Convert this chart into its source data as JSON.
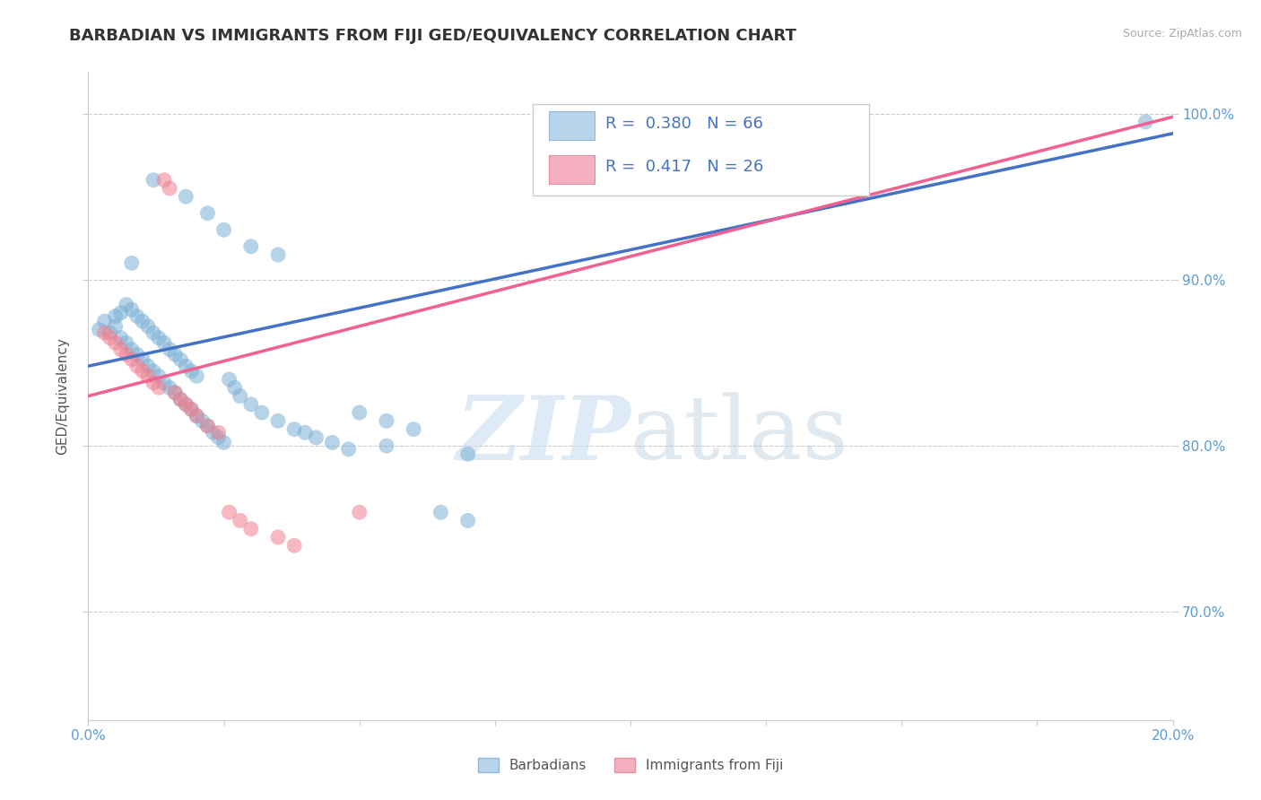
{
  "title": "BARBADIAN VS IMMIGRANTS FROM FIJI GED/EQUIVALENCY CORRELATION CHART",
  "source_text": "Source: ZipAtlas.com",
  "ylabel": "GED/Equivalency",
  "xmin": 0.0,
  "xmax": 0.2,
  "ymin": 0.635,
  "ymax": 1.025,
  "xticks": [
    0.0,
    0.025,
    0.05,
    0.075,
    0.1,
    0.125,
    0.15,
    0.175,
    0.2
  ],
  "ytick_labels_right": [
    "70.0%",
    "80.0%",
    "90.0%",
    "100.0%"
  ],
  "ytick_values_right": [
    0.7,
    0.8,
    0.9,
    1.0
  ],
  "scatter_blue_x": [
    0.002,
    0.003,
    0.004,
    0.005,
    0.005,
    0.006,
    0.006,
    0.007,
    0.007,
    0.008,
    0.008,
    0.009,
    0.009,
    0.01,
    0.01,
    0.011,
    0.011,
    0.012,
    0.012,
    0.013,
    0.013,
    0.014,
    0.014,
    0.015,
    0.015,
    0.016,
    0.016,
    0.017,
    0.017,
    0.018,
    0.018,
    0.019,
    0.019,
    0.02,
    0.02,
    0.021,
    0.022,
    0.023,
    0.024,
    0.025,
    0.026,
    0.027,
    0.028,
    0.03,
    0.032,
    0.035,
    0.038,
    0.04,
    0.042,
    0.045,
    0.048,
    0.05,
    0.055,
    0.06,
    0.065,
    0.07,
    0.008,
    0.012,
    0.018,
    0.022,
    0.025,
    0.03,
    0.035,
    0.055,
    0.07,
    0.195
  ],
  "scatter_blue_y": [
    0.87,
    0.875,
    0.868,
    0.872,
    0.878,
    0.865,
    0.88,
    0.862,
    0.885,
    0.858,
    0.882,
    0.855,
    0.878,
    0.852,
    0.875,
    0.848,
    0.872,
    0.845,
    0.868,
    0.842,
    0.865,
    0.838,
    0.862,
    0.835,
    0.858,
    0.832,
    0.855,
    0.828,
    0.852,
    0.825,
    0.848,
    0.822,
    0.845,
    0.818,
    0.842,
    0.815,
    0.812,
    0.808,
    0.805,
    0.802,
    0.84,
    0.835,
    0.83,
    0.825,
    0.82,
    0.815,
    0.81,
    0.808,
    0.805,
    0.802,
    0.798,
    0.82,
    0.815,
    0.81,
    0.76,
    0.755,
    0.91,
    0.96,
    0.95,
    0.94,
    0.93,
    0.92,
    0.915,
    0.8,
    0.795,
    0.995
  ],
  "scatter_pink_x": [
    0.003,
    0.004,
    0.005,
    0.006,
    0.007,
    0.008,
    0.009,
    0.01,
    0.011,
    0.012,
    0.013,
    0.014,
    0.015,
    0.016,
    0.017,
    0.018,
    0.019,
    0.02,
    0.022,
    0.024,
    0.026,
    0.028,
    0.03,
    0.035,
    0.038,
    0.05
  ],
  "scatter_pink_y": [
    0.868,
    0.865,
    0.862,
    0.858,
    0.855,
    0.852,
    0.848,
    0.845,
    0.842,
    0.838,
    0.835,
    0.96,
    0.955,
    0.832,
    0.828,
    0.825,
    0.822,
    0.818,
    0.812,
    0.808,
    0.76,
    0.755,
    0.75,
    0.745,
    0.74,
    0.76
  ],
  "trendline_blue_x0": 0.0,
  "trendline_blue_x1": 0.2,
  "trendline_blue_y0": 0.848,
  "trendline_blue_y1": 0.988,
  "trendline_pink_x0": 0.0,
  "trendline_pink_x1": 0.2,
  "trendline_pink_y0": 0.83,
  "trendline_pink_y1": 0.998,
  "trendline_blue_color": "#4472c4",
  "trendline_pink_color": "#f06090",
  "scatter_blue_color": "#7bafd4",
  "scatter_pink_color": "#f08090",
  "scatter_alpha": 0.55,
  "scatter_size": 150,
  "grid_color": "#cccccc",
  "background_color": "#ffffff",
  "watermark_zip": "ZIP",
  "watermark_atlas": "atlas",
  "legend_label_blue": "Barbadians",
  "legend_label_pink": "Immigrants from Fiji",
  "title_fontsize": 13,
  "axis_label_fontsize": 11,
  "tick_fontsize": 11,
  "source_fontsize": 9
}
